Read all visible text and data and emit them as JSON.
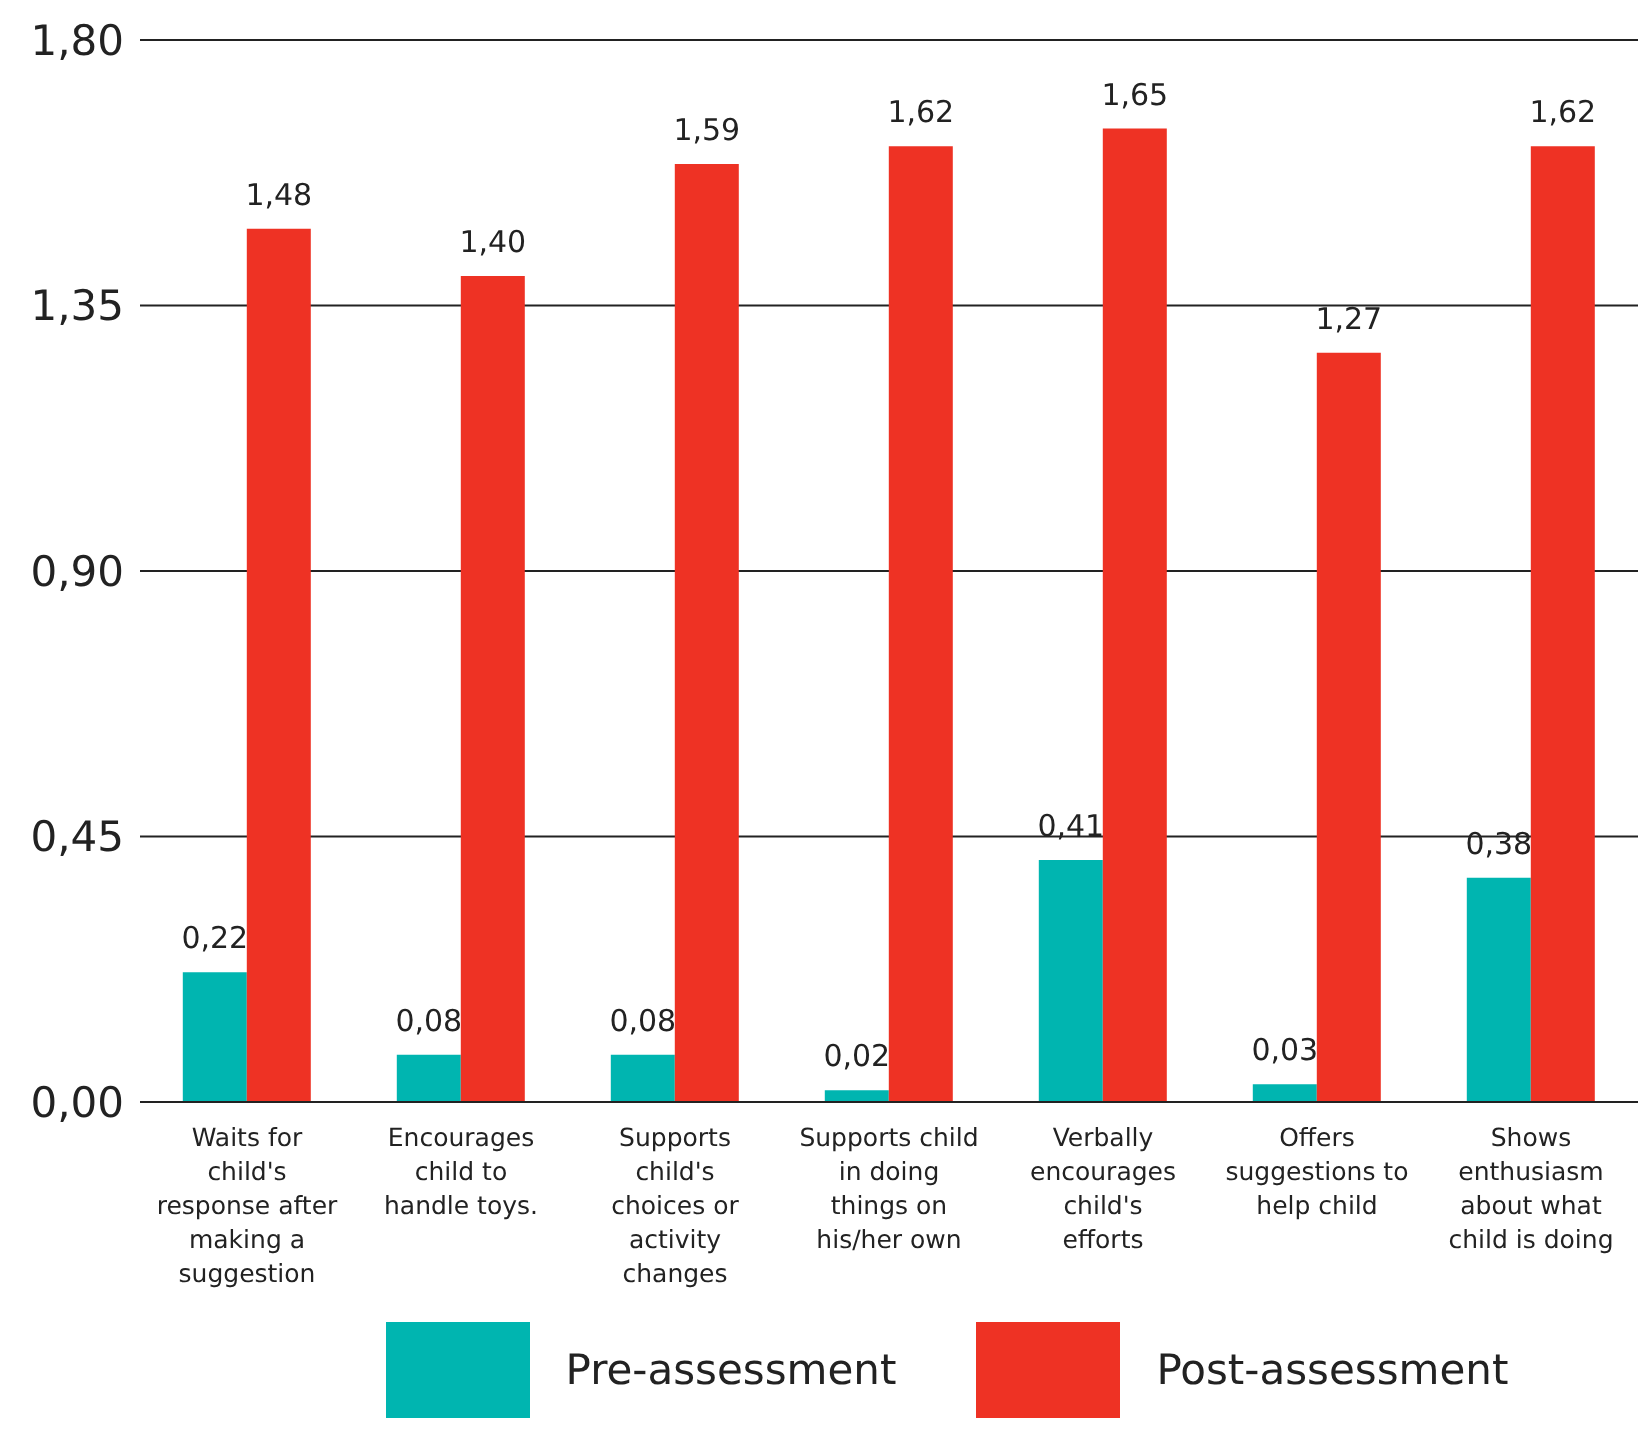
{
  "chart_data": {
    "type": "bar",
    "categories": [
      "Waits for child's response after making a suggestion",
      "Encourages child to handle toys.",
      "Supports child's choices or activity changes",
      "Supports child in doing things on his/her own",
      "Verbally encourages child's efforts",
      "Offers suggestions to help child",
      "Shows enthusiasm about what child is doing"
    ],
    "series": [
      {
        "name": "Pre-assessment",
        "color": "#00b5b0",
        "values": [
          0.22,
          0.08,
          0.08,
          0.02,
          0.41,
          0.03,
          0.38
        ],
        "value_labels": [
          "0,22",
          "0,08",
          "0,08",
          "0,02",
          "0,41",
          "0,03",
          "0,38"
        ]
      },
      {
        "name": "Post-assessment",
        "color": "#ee3224",
        "values": [
          1.48,
          1.4,
          1.59,
          1.62,
          1.65,
          1.27,
          1.62
        ],
        "value_labels": [
          "1,48",
          "1,40",
          "1,59",
          "1,62",
          "1,65",
          "1,27",
          "1,62"
        ]
      }
    ],
    "ylim": [
      0,
      1.8
    ],
    "yticks": [
      {
        "value": 0,
        "label": "0,00"
      },
      {
        "value": 0.45,
        "label": "0,45"
      },
      {
        "value": 0.9,
        "label": "0,90"
      },
      {
        "value": 1.35,
        "label": "1,35"
      },
      {
        "value": 1.8,
        "label": "1,80"
      }
    ],
    "grid": "y",
    "legend": "bottom"
  }
}
